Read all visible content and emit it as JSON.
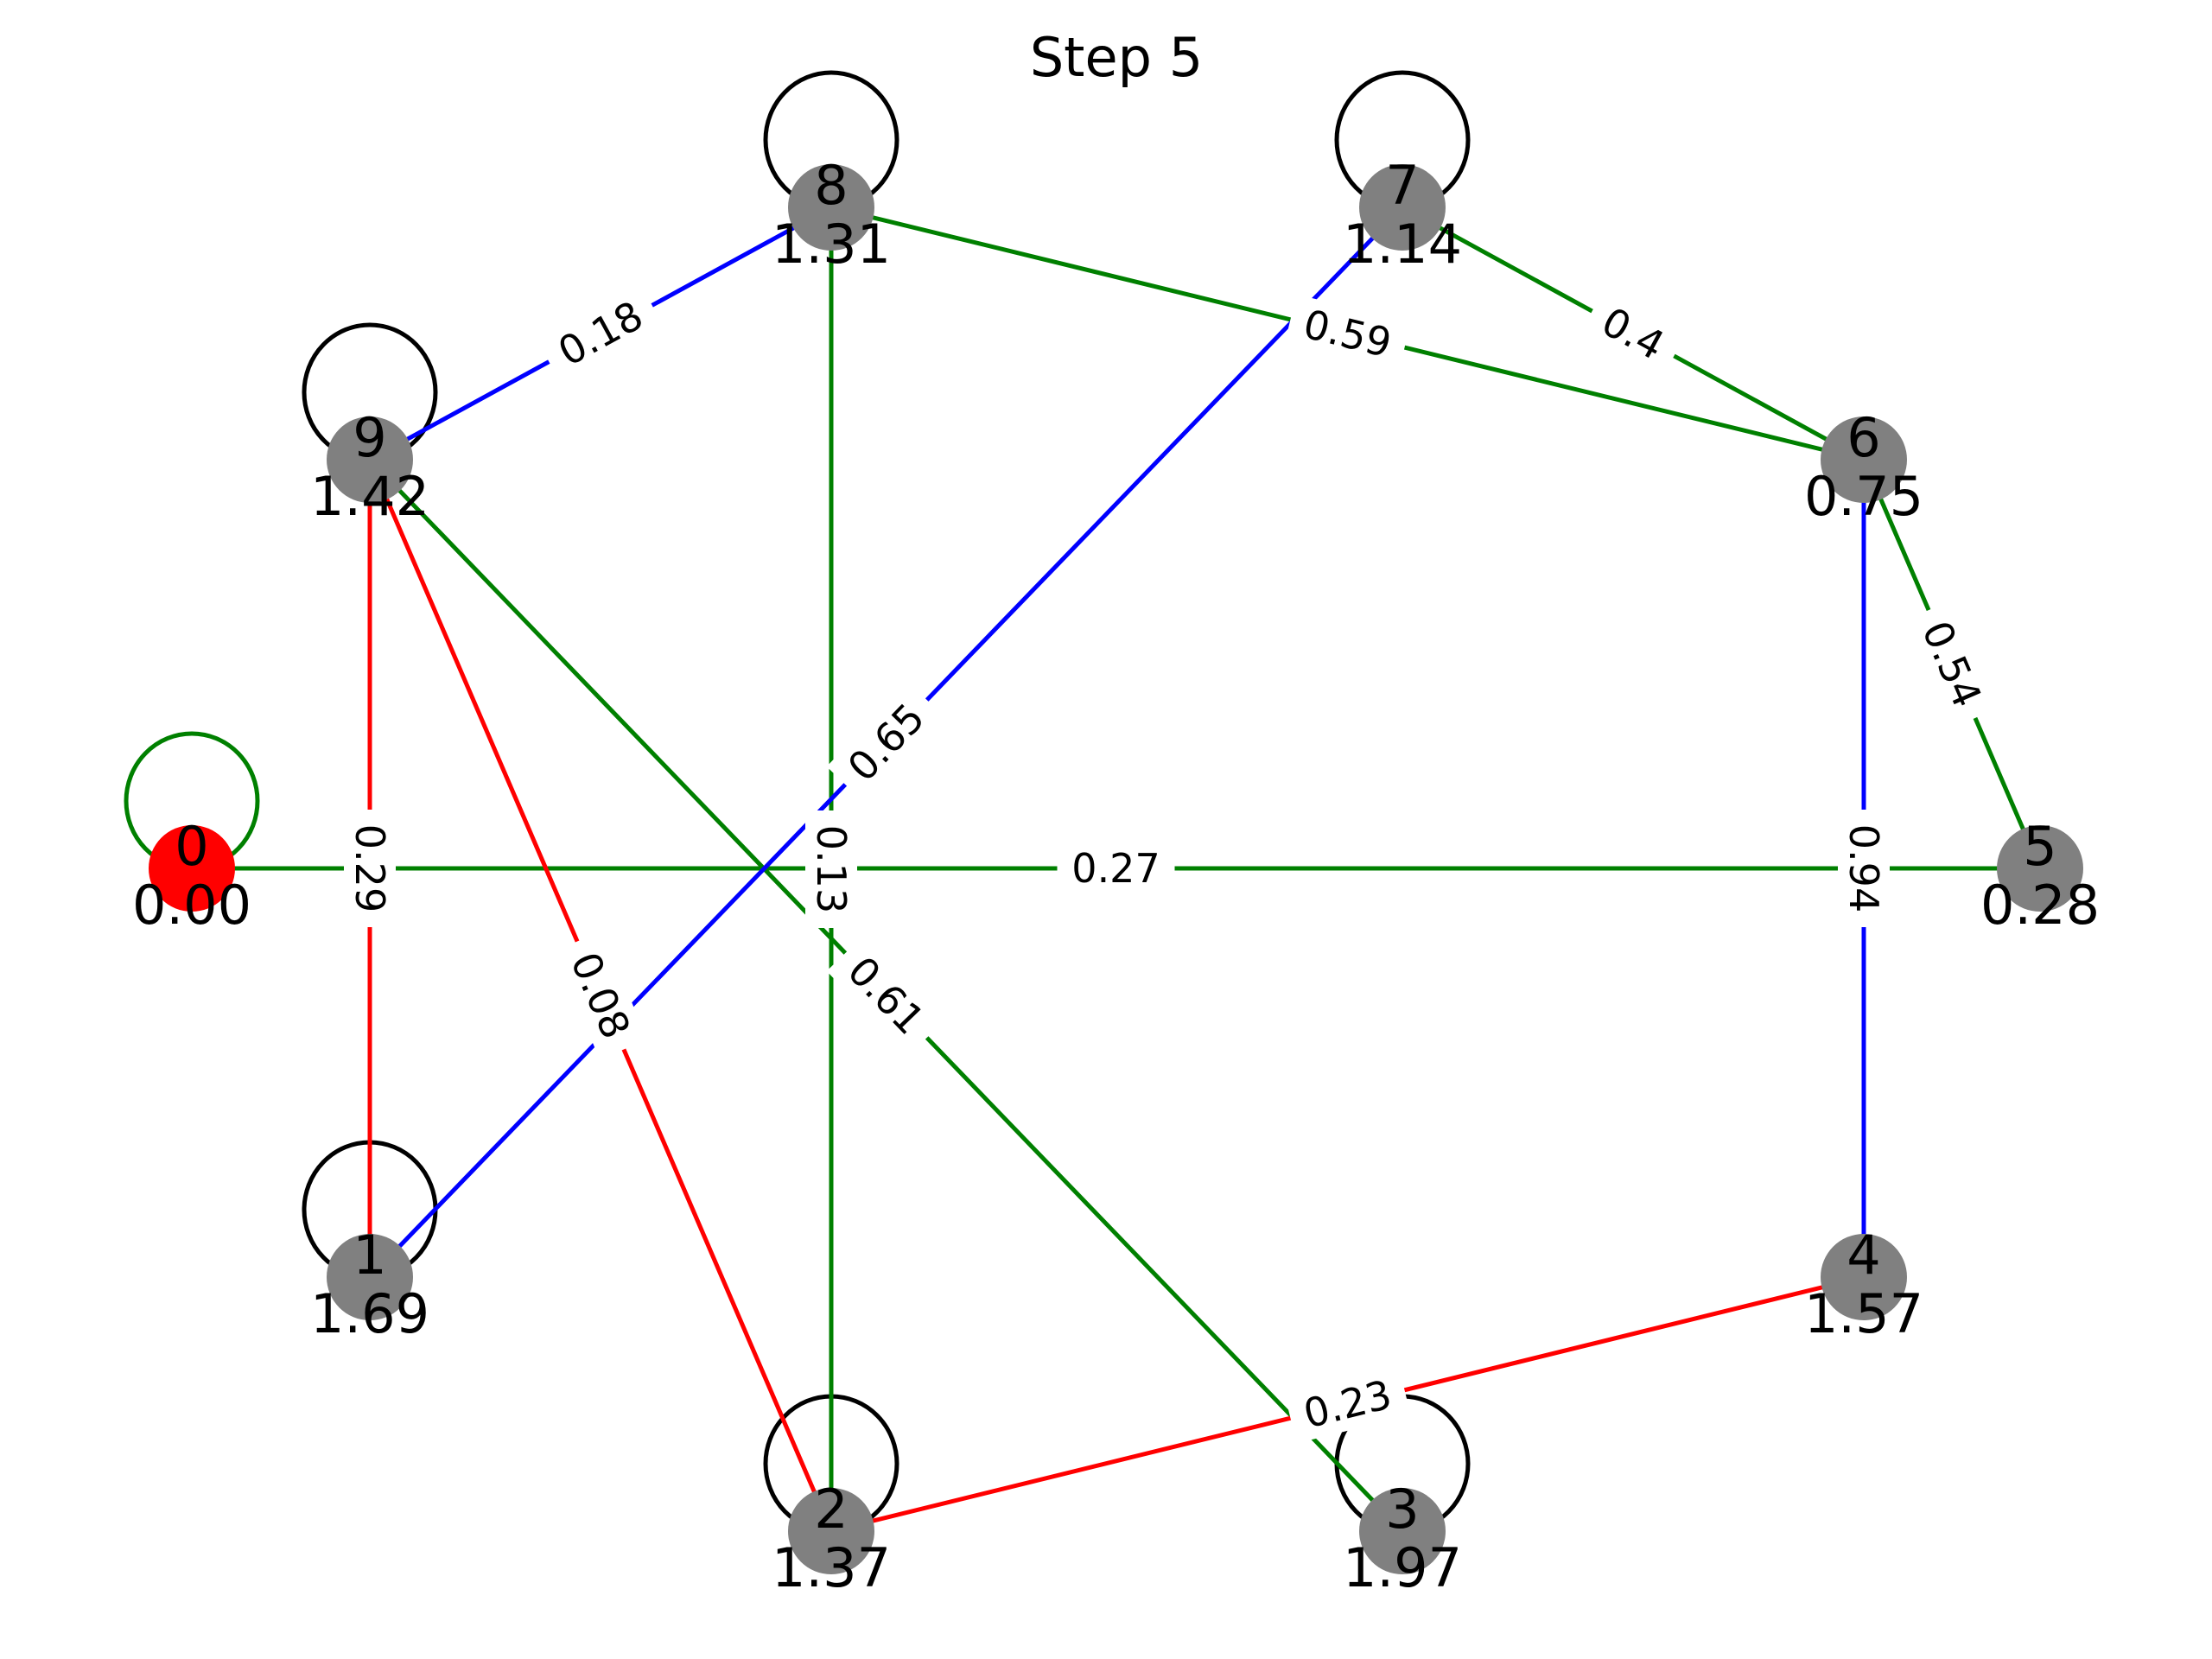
{
  "title": "Step 5",
  "colors": {
    "node_default": "#808080",
    "node_source": "#ff0000",
    "edge_green": "#008000",
    "edge_blue": "#0000ff",
    "edge_red": "#ff0000",
    "self_loop": "#000000",
    "self_loop_source": "#008000"
  },
  "nodes": [
    {
      "id": "0",
      "value": "0.00",
      "color": "red"
    },
    {
      "id": "1",
      "value": "1.69",
      "color": "gray"
    },
    {
      "id": "2",
      "value": "1.37",
      "color": "gray"
    },
    {
      "id": "3",
      "value": "1.97",
      "color": "gray"
    },
    {
      "id": "4",
      "value": "1.57",
      "color": "gray"
    },
    {
      "id": "5",
      "value": "0.28",
      "color": "gray"
    },
    {
      "id": "6",
      "value": "0.75",
      "color": "gray"
    },
    {
      "id": "7",
      "value": "1.14",
      "color": "gray"
    },
    {
      "id": "8",
      "value": "1.31",
      "color": "gray"
    },
    {
      "id": "9",
      "value": "1.42",
      "color": "gray"
    }
  ],
  "self_loops": [
    "0",
    "1",
    "2",
    "3",
    "7",
    "8",
    "9"
  ],
  "edges": [
    {
      "from": "0",
      "to": "5",
      "weight": "0.27",
      "color": "green"
    },
    {
      "from": "9",
      "to": "1",
      "weight": "0.29",
      "color": "red"
    },
    {
      "from": "9",
      "to": "8",
      "weight": "0.18",
      "color": "blue"
    },
    {
      "from": "9",
      "to": "2",
      "weight": "0.08",
      "color": "red"
    },
    {
      "from": "9",
      "to": "3",
      "weight": "0.61",
      "color": "green"
    },
    {
      "from": "8",
      "to": "2",
      "weight": "0.13",
      "color": "green"
    },
    {
      "from": "8",
      "to": "6",
      "weight": "0.59",
      "color": "green"
    },
    {
      "from": "7",
      "to": "1",
      "weight": "0.65",
      "color": "blue"
    },
    {
      "from": "7",
      "to": "6",
      "weight": "0.4",
      "color": "green"
    },
    {
      "from": "6",
      "to": "5",
      "weight": "0.54",
      "color": "green"
    },
    {
      "from": "6",
      "to": "4",
      "weight": "0.94",
      "color": "blue"
    },
    {
      "from": "2",
      "to": "4",
      "weight": "0.23",
      "color": "red"
    }
  ]
}
